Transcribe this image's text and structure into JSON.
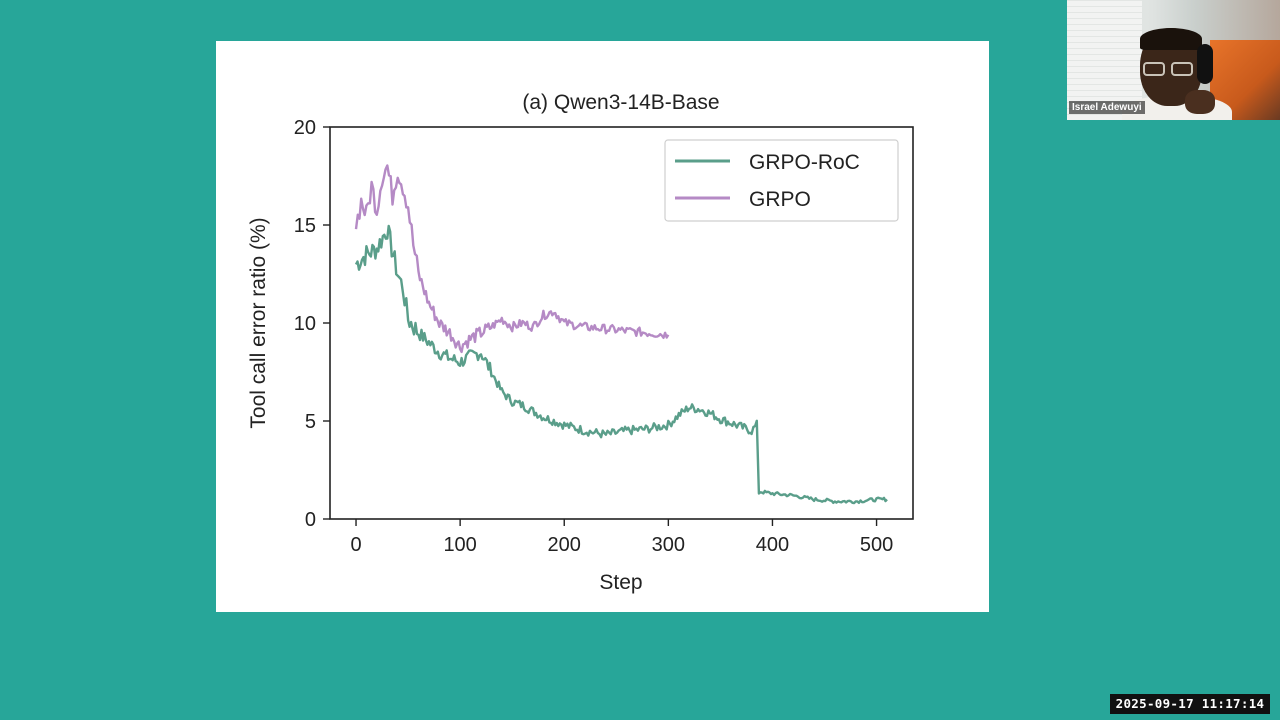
{
  "meeting": {
    "participant_name": "Israel Adewuyi",
    "timestamp": "2025-09-17  11:17:14"
  },
  "chart_data": {
    "type": "line",
    "title": "(a) Qwen3-14B-Base",
    "xlabel": "Step",
    "ylabel": "Tool call error ratio (%)",
    "xlim": [
      -25,
      535
    ],
    "ylim": [
      0,
      20
    ],
    "xticks": [
      0,
      100,
      200,
      300,
      400,
      500
    ],
    "yticks": [
      0,
      5,
      10,
      15,
      20
    ],
    "grid": false,
    "legend_position": "top-right",
    "series": [
      {
        "name": "GRPO-RoC",
        "color": "#5a9e8a",
        "x": [
          0,
          10,
          20,
          30,
          40,
          45,
          50,
          60,
          70,
          80,
          90,
          100,
          110,
          120,
          130,
          140,
          150,
          160,
          170,
          180,
          190,
          200,
          220,
          240,
          260,
          280,
          300,
          310,
          320,
          330,
          340,
          350,
          360,
          370,
          380,
          385,
          387,
          400,
          420,
          440,
          460,
          480,
          500,
          510
        ],
        "y": [
          13.0,
          13.5,
          13.8,
          14.8,
          12.5,
          11.8,
          10.2,
          9.5,
          9.0,
          8.5,
          8.2,
          8.0,
          8.3,
          8.5,
          7.5,
          6.5,
          6.0,
          5.8,
          5.5,
          5.2,
          5.0,
          4.8,
          4.5,
          4.3,
          4.5,
          4.6,
          4.8,
          5.3,
          5.7,
          5.6,
          5.4,
          5.1,
          4.9,
          4.7,
          4.5,
          4.8,
          1.4,
          1.3,
          1.2,
          1.0,
          0.9,
          0.9,
          1.0,
          1.0
        ]
      },
      {
        "name": "GRPO",
        "color": "#b58ac5",
        "x": [
          0,
          5,
          10,
          15,
          20,
          25,
          30,
          35,
          40,
          45,
          50,
          55,
          60,
          70,
          80,
          90,
          100,
          110,
          120,
          130,
          140,
          150,
          160,
          170,
          180,
          190,
          200,
          220,
          240,
          260,
          280,
          300
        ],
        "y": [
          15.0,
          16.2,
          15.5,
          17.0,
          15.8,
          17.5,
          18.0,
          16.5,
          17.8,
          17.0,
          16.0,
          14.0,
          12.5,
          11.0,
          10.0,
          9.5,
          8.8,
          9.2,
          9.5,
          9.8,
          10.2,
          9.8,
          10.0,
          9.8,
          10.4,
          10.6,
          10.0,
          9.8,
          9.7,
          9.6,
          9.5,
          9.4
        ]
      }
    ]
  }
}
